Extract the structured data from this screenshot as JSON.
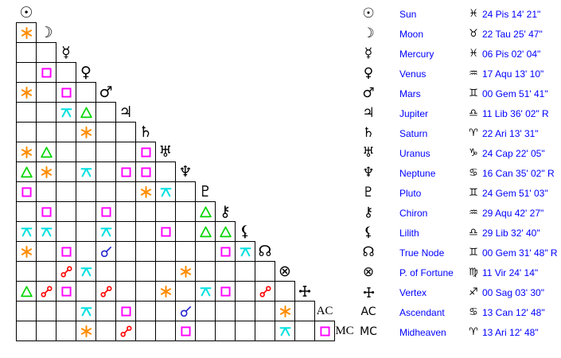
{
  "chart_data": {
    "type": "table",
    "title": "Astrological aspect grid (aspectarian) with planet position legend",
    "planets": [
      {
        "name": "Sun",
        "glyph": "☉",
        "sign": "♓",
        "position": "24 Pis 14' 21\""
      },
      {
        "name": "Moon",
        "glyph": "☽",
        "sign": "♉",
        "position": "22 Tau 25' 47\""
      },
      {
        "name": "Mercury",
        "glyph": "☿",
        "sign": "♓",
        "position": "06 Pis 02' 04\""
      },
      {
        "name": "Venus",
        "glyph": "♀",
        "sign": "♒",
        "position": "17 Aqu 13' 10\""
      },
      {
        "name": "Mars",
        "glyph": "♂",
        "sign": "♊",
        "position": "00 Gem 51' 41\""
      },
      {
        "name": "Jupiter",
        "glyph": "♃",
        "sign": "♎",
        "position": "11 Lib 36' 02\" R"
      },
      {
        "name": "Saturn",
        "glyph": "♄",
        "sign": "♈",
        "position": "22 Ari 13' 31\""
      },
      {
        "name": "Uranus",
        "glyph": "♅",
        "sign": "♑",
        "position": "24 Cap 22' 05\""
      },
      {
        "name": "Neptune",
        "glyph": "♆",
        "sign": "♋",
        "position": "16 Can 35' 02\" R"
      },
      {
        "name": "Pluto",
        "glyph": "♇",
        "sign": "♊",
        "position": "24 Gem 51' 03\""
      },
      {
        "name": "Chiron",
        "glyph": "⚷",
        "sign": "♒",
        "position": "29 Aqu 42' 27\""
      },
      {
        "name": "Lilith",
        "glyph": "⚸",
        "sign": "♎",
        "position": "29 Lib 32' 40\""
      },
      {
        "name": "True Node",
        "glyph": "☊",
        "sign": "♊",
        "position": "00 Gem 31' 48\" R"
      },
      {
        "name": "P. of Fortune",
        "glyph": "⊗",
        "sign": "♍",
        "position": "11 Vir 24' 14\""
      },
      {
        "name": "Vertex",
        "glyph": "vertex",
        "sign": "♐",
        "position": "00 Sag 03' 30\""
      },
      {
        "name": "Ascendant",
        "glyph": "AC",
        "sign": "♋",
        "position": "13 Can 12' 48\""
      },
      {
        "name": "Midheaven",
        "glyph": "MC",
        "sign": "♈",
        "position": "13 Ari 12' 48\""
      }
    ],
    "aspects": [
      [
        1,
        0,
        "sextile"
      ],
      [
        3,
        1,
        "square"
      ],
      [
        4,
        0,
        "sextile"
      ],
      [
        4,
        2,
        "square"
      ],
      [
        5,
        2,
        "quincunx"
      ],
      [
        5,
        3,
        "trine"
      ],
      [
        6,
        3,
        "sextile"
      ],
      [
        7,
        0,
        "sextile"
      ],
      [
        7,
        1,
        "trine"
      ],
      [
        7,
        6,
        "square"
      ],
      [
        8,
        0,
        "trine"
      ],
      [
        8,
        1,
        "sextile"
      ],
      [
        8,
        3,
        "quincunx"
      ],
      [
        8,
        5,
        "square"
      ],
      [
        8,
        6,
        "square"
      ],
      [
        9,
        0,
        "square"
      ],
      [
        9,
        6,
        "sextile"
      ],
      [
        9,
        7,
        "quincunx"
      ],
      [
        10,
        1,
        "square"
      ],
      [
        10,
        4,
        "square"
      ],
      [
        10,
        9,
        "trine"
      ],
      [
        11,
        0,
        "quincunx"
      ],
      [
        11,
        1,
        "quincunx"
      ],
      [
        11,
        4,
        "quincunx"
      ],
      [
        11,
        7,
        "square"
      ],
      [
        11,
        9,
        "trine"
      ],
      [
        11,
        10,
        "trine"
      ],
      [
        12,
        0,
        "sextile"
      ],
      [
        12,
        2,
        "square"
      ],
      [
        12,
        4,
        "conjunction"
      ],
      [
        12,
        10,
        "square"
      ],
      [
        12,
        11,
        "quincunx"
      ],
      [
        13,
        2,
        "opposition"
      ],
      [
        13,
        3,
        "quincunx"
      ],
      [
        13,
        8,
        "sextile"
      ],
      [
        14,
        0,
        "trine"
      ],
      [
        14,
        1,
        "opposition"
      ],
      [
        14,
        2,
        "square"
      ],
      [
        14,
        4,
        "opposition"
      ],
      [
        14,
        7,
        "sextile"
      ],
      [
        14,
        9,
        "quincunx"
      ],
      [
        14,
        10,
        "square"
      ],
      [
        14,
        12,
        "opposition"
      ],
      [
        15,
        3,
        "quincunx"
      ],
      [
        15,
        5,
        "square"
      ],
      [
        15,
        8,
        "conjunction"
      ],
      [
        15,
        13,
        "sextile"
      ],
      [
        16,
        3,
        "sextile"
      ],
      [
        16,
        5,
        "opposition"
      ],
      [
        16,
        8,
        "square"
      ],
      [
        16,
        13,
        "quincunx"
      ],
      [
        16,
        15,
        "square"
      ]
    ],
    "aspect_colors": {
      "conjunction": "#2222CC",
      "sextile": "#FF8C00",
      "square": "#FF00FF",
      "trine": "#00D500",
      "opposition": "#FF0000",
      "quincunx": "#00E0E0"
    },
    "text_color": "#0000FF",
    "grid_line_color": "#000000",
    "background": "#FFFFFF"
  }
}
